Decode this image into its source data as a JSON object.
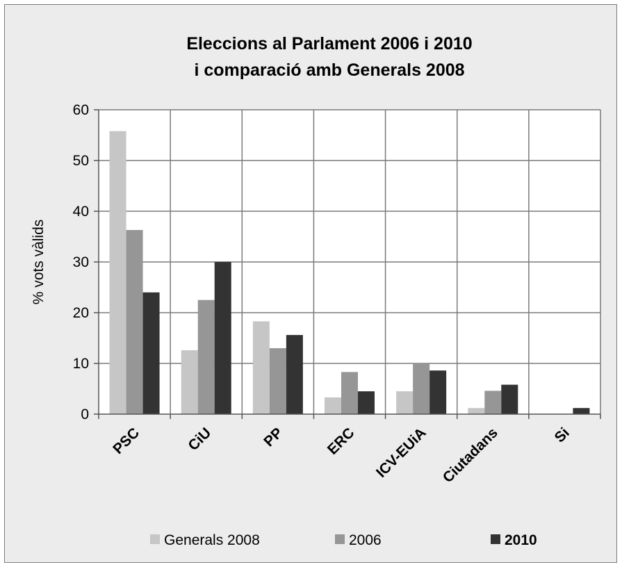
{
  "chart_data": {
    "type": "bar",
    "title_lines": [
      "Eleccions al Parlament  2006 i 2010",
      "i comparació amb Generals 2008"
    ],
    "ylabel": "% vots vàlids",
    "xlabel": "",
    "ylim": [
      0,
      60
    ],
    "yticks": [
      0,
      10,
      20,
      30,
      40,
      50,
      60
    ],
    "grid": true,
    "legend_position": "bottom",
    "categories": [
      "PSC",
      "CiU",
      "PP",
      "ERC",
      "ICV-EUiA",
      "Ciutadans",
      "Si"
    ],
    "series": [
      {
        "name": "Generals 2008",
        "color": "#c6c6c6",
        "values": [
          55.8,
          12.6,
          18.3,
          3.3,
          4.5,
          1.2,
          0
        ]
      },
      {
        "name": "2006",
        "color": "#969696",
        "values": [
          36.3,
          22.5,
          13.0,
          8.3,
          10.0,
          4.6,
          0
        ]
      },
      {
        "name": "2010",
        "color": "#333333",
        "values": [
          24.0,
          30.0,
          15.6,
          4.5,
          8.6,
          5.8,
          1.2
        ]
      }
    ]
  }
}
